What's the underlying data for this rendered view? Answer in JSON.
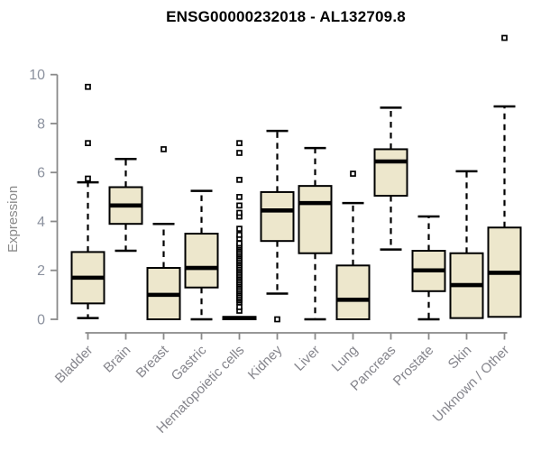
{
  "title": "ENSG00000232018 - AL132709.8",
  "chart_data": {
    "type": "boxplot",
    "title": "ENSG00000232018 - AL132709.8",
    "xlabel": "",
    "ylabel": "Expression",
    "ylim": [
      0,
      11.6
    ],
    "yticks": [
      0,
      2,
      4,
      6,
      8,
      10
    ],
    "grid": false,
    "legend": false,
    "colors": {
      "box_fill": "#EDE7CC",
      "box_border": "#000000",
      "median": "#000000",
      "axis_line": "#8a8a8a",
      "y_tick_label": "#8b919e",
      "category_label": "#85858c",
      "outlier": "#000000"
    },
    "categories": [
      "Bladder",
      "Brain",
      "Breast",
      "Gastric",
      "Hematopoietic cells",
      "Kidney",
      "Liver",
      "Lung",
      "Pancreas",
      "Prostate",
      "Skin",
      "Unknown / Other"
    ],
    "boxes": [
      {
        "category": "Bladder",
        "whisker_low": 0.05,
        "q1": 0.65,
        "median": 1.7,
        "q3": 2.75,
        "whisker_high": 5.6,
        "outliers": [
          5.75,
          7.2,
          9.5
        ]
      },
      {
        "category": "Brain",
        "whisker_low": 2.8,
        "q1": 3.9,
        "median": 4.65,
        "q3": 5.4,
        "whisker_high": 6.55,
        "outliers": []
      },
      {
        "category": "Breast",
        "whisker_low": 0.0,
        "q1": 0.0,
        "median": 1.0,
        "q3": 2.1,
        "whisker_high": 3.9,
        "outliers": [
          6.95
        ]
      },
      {
        "category": "Gastric",
        "whisker_low": 0.0,
        "q1": 1.3,
        "median": 2.1,
        "q3": 3.5,
        "whisker_high": 5.25,
        "outliers": []
      },
      {
        "category": "Hematopoietic cells",
        "whisker_low": 0.0,
        "q1": 0.0,
        "median": 0.05,
        "q3": 0.1,
        "whisker_high": 0.15,
        "outliers": [
          0.35,
          0.5,
          0.7,
          0.78,
          0.85,
          0.92,
          1.0,
          1.08,
          1.15,
          1.22,
          1.3,
          1.38,
          1.45,
          1.52,
          1.6,
          1.68,
          1.75,
          1.82,
          1.9,
          1.98,
          2.05,
          2.12,
          2.2,
          2.28,
          2.35,
          2.42,
          2.5,
          2.58,
          2.65,
          2.72,
          2.8,
          2.88,
          2.95,
          3.02,
          3.1,
          3.3,
          3.45,
          3.7,
          4.2,
          4.35,
          4.65,
          5.0,
          5.7,
          6.8,
          7.2
        ]
      },
      {
        "category": "Kidney",
        "whisker_low": 1.05,
        "q1": 3.2,
        "median": 4.45,
        "q3": 5.2,
        "whisker_high": 7.7,
        "outliers": [
          0.0
        ]
      },
      {
        "category": "Liver",
        "whisker_low": 0.0,
        "q1": 2.7,
        "median": 4.75,
        "q3": 5.45,
        "whisker_high": 7.0,
        "outliers": []
      },
      {
        "category": "Lung",
        "whisker_low": 0.0,
        "q1": 0.0,
        "median": 0.8,
        "q3": 2.2,
        "whisker_high": 4.75,
        "outliers": [
          5.95
        ]
      },
      {
        "category": "Pancreas",
        "whisker_low": 2.85,
        "q1": 5.05,
        "median": 6.45,
        "q3": 6.95,
        "whisker_high": 8.65,
        "outliers": []
      },
      {
        "category": "Prostate",
        "whisker_low": 0.0,
        "q1": 1.15,
        "median": 2.0,
        "q3": 2.8,
        "whisker_high": 4.2,
        "outliers": []
      },
      {
        "category": "Skin",
        "whisker_low": 0.05,
        "q1": 0.05,
        "median": 1.4,
        "q3": 2.7,
        "whisker_high": 6.05,
        "outliers": []
      },
      {
        "category": "Unknown / Other",
        "whisker_low": 0.1,
        "q1": 0.1,
        "median": 1.9,
        "q3": 3.75,
        "whisker_high": 8.7,
        "outliers": [
          11.5
        ]
      }
    ]
  }
}
